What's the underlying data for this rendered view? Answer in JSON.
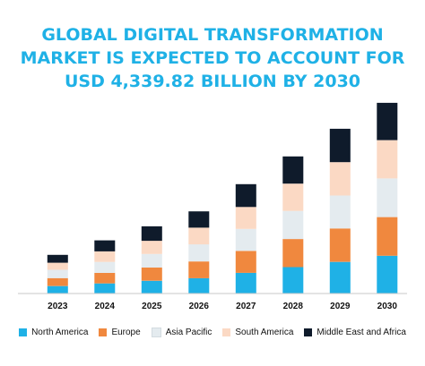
{
  "title_lines": [
    "GLOBAL DIGITAL TRANSFORMATION",
    "MARKET IS EXPECTED TO ACCOUNT FOR",
    "USD 4,339.82 BILLION BY 2030"
  ],
  "colors": {
    "title": "#1fb1e6",
    "North America": "#1fb1e6",
    "Europe": "#f0883e",
    "Asia Pacific": "#e4ebef",
    "South America": "#fbd9c4",
    "Middle East and Africa": "#0f1b2b"
  },
  "chart_data": {
    "type": "bar",
    "stacked": true,
    "title": "GLOBAL DIGITAL TRANSFORMATION MARKET IS EXPECTED TO ACCOUNT FOR USD 4,339.82 BILLION BY 2030",
    "xlabel": "",
    "ylabel": "",
    "grid": false,
    "legend_position": "bottom",
    "ylim": [
      0,
      4400
    ],
    "categories": [
      "2023",
      "2024",
      "2025",
      "2026",
      "2027",
      "2028",
      "2029",
      "2030"
    ],
    "series": [
      {
        "name": "North America",
        "values": [
          170,
          230,
          290,
          350,
          470,
          600,
          720,
          860
        ]
      },
      {
        "name": "Europe",
        "values": [
          180,
          240,
          300,
          380,
          500,
          640,
          760,
          880
        ]
      },
      {
        "name": "Asia Pacific",
        "values": [
          190,
          250,
          310,
          390,
          500,
          640,
          750,
          880
        ]
      },
      {
        "name": "South America",
        "values": [
          160,
          240,
          300,
          380,
          500,
          620,
          760,
          870
        ]
      },
      {
        "name": "Middle East and Africa",
        "values": [
          180,
          250,
          330,
          370,
          520,
          620,
          760,
          850
        ]
      }
    ]
  },
  "legend": [
    {
      "label": "North America",
      "color": "#1fb1e6"
    },
    {
      "label": "Europe",
      "color": "#f0883e"
    },
    {
      "label": "Asia Pacific",
      "color": "#e4ebef"
    },
    {
      "label": "South America",
      "color": "#fbd9c4"
    },
    {
      "label": "Middle East and Africa",
      "color": "#0f1b2b"
    }
  ]
}
